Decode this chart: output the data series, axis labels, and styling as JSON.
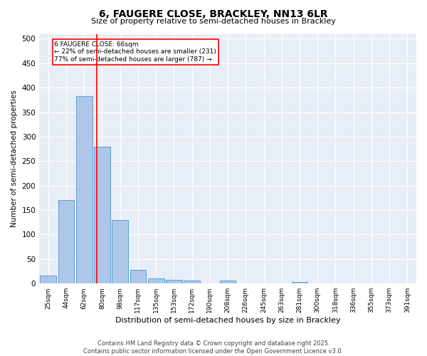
{
  "title1": "6, FAUGERE CLOSE, BRACKLEY, NN13 6LR",
  "title2": "Size of property relative to semi-detached houses in Brackley",
  "xlabel": "Distribution of semi-detached houses by size in Brackley",
  "ylabel": "Number of semi-detached properties",
  "bin_labels": [
    "25sqm",
    "44sqm",
    "62sqm",
    "80sqm",
    "98sqm",
    "117sqm",
    "135sqm",
    "153sqm",
    "172sqm",
    "190sqm",
    "208sqm",
    "226sqm",
    "245sqm",
    "263sqm",
    "281sqm",
    "300sqm",
    "318sqm",
    "336sqm",
    "355sqm",
    "373sqm",
    "391sqm"
  ],
  "bar_heights": [
    16,
    170,
    383,
    280,
    130,
    28,
    10,
    8,
    6,
    0,
    6,
    0,
    0,
    0,
    3,
    0,
    0,
    0,
    0,
    0,
    0
  ],
  "bar_color": "#aec6e8",
  "bar_edge_color": "#5a9fd4",
  "bg_color": "#e8eef8",
  "red_line_x": 2.72,
  "annotation_text": "6 FAUGERE CLOSE: 66sqm\n← 22% of semi-detached houses are smaller (231)\n77% of semi-detached houses are larger (787) →",
  "footer1": "Contains HM Land Registry data © Crown copyright and database right 2025.",
  "footer2": "Contains public sector information licensed under the Open Government Licence v3.0.",
  "ylim": [
    0,
    510
  ],
  "yticks": [
    0,
    50,
    100,
    150,
    200,
    250,
    300,
    350,
    400,
    450,
    500
  ]
}
